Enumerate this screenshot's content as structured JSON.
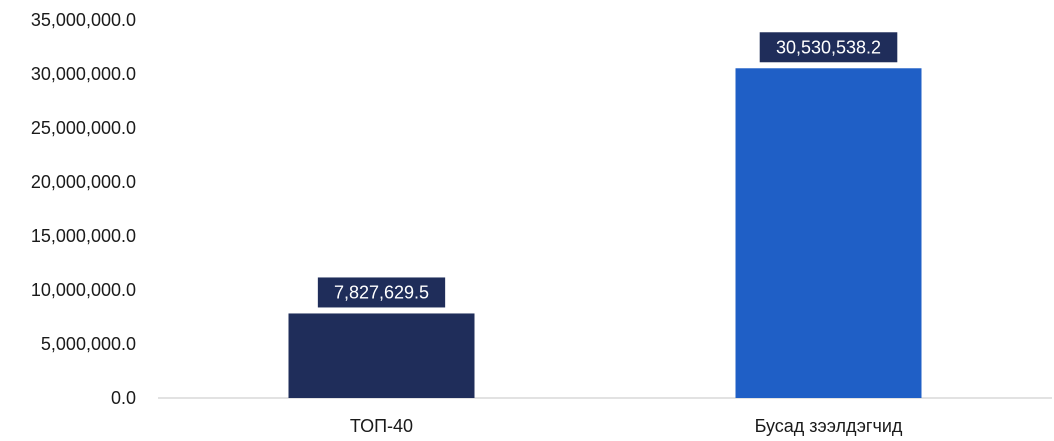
{
  "chart_data": {
    "type": "bar",
    "categories": [
      "ТОП-40",
      "Бусад зээлдэгчид"
    ],
    "values": [
      7827629.5,
      30530538.2
    ],
    "data_labels": [
      "7,827,629.5",
      "30,530,538.2"
    ],
    "bar_colors": [
      "#1f2d5a",
      "#1f5fc6"
    ],
    "label_bg_colors": [
      "#1f2d5a",
      "#1f2d5a"
    ],
    "ylim": [
      0,
      35000000
    ],
    "y_ticks": [
      0,
      5000000,
      10000000,
      15000000,
      20000000,
      25000000,
      30000000,
      35000000
    ],
    "y_tick_labels": [
      "0.0",
      "5,000,000.0",
      "10,000,000.0",
      "15,000,000.0",
      "20,000,000.0",
      "25,000,000.0",
      "30,000,000.0",
      "35,000,000.0"
    ],
    "grid": false,
    "title": "",
    "xlabel": "",
    "ylabel": ""
  }
}
